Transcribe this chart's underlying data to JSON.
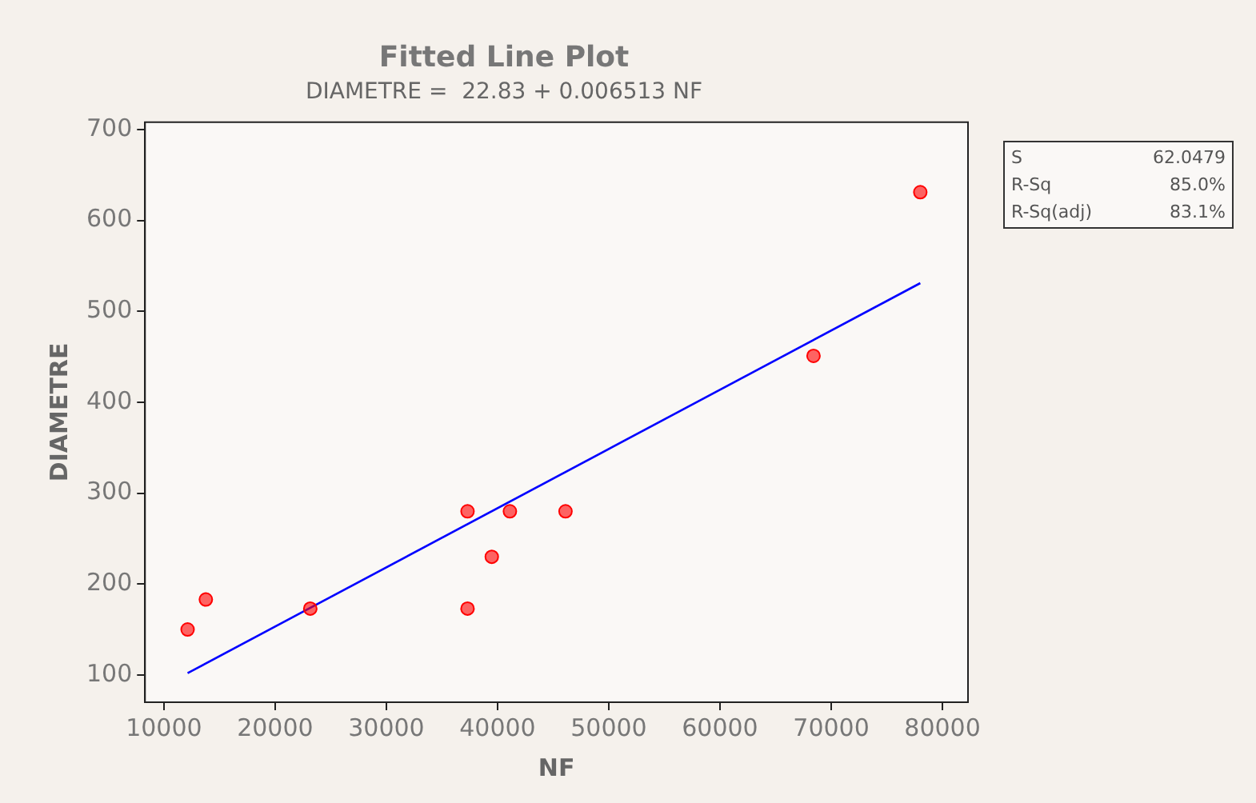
{
  "chart_data": {
    "type": "scatter",
    "title": "Fitted Line Plot",
    "subtitle": "DIAMETRE =  22.83 + 0.006513 NF",
    "xlabel": "NF",
    "ylabel": "DIAMETRE",
    "series": [
      {
        "color": "#ff0000",
        "x": [
          12130,
          13770,
          23160,
          37300,
          37300,
          39480,
          41110,
          46110,
          68410,
          78010
        ],
        "values": [
          150,
          183,
          173,
          280,
          173,
          230,
          280,
          280,
          451,
          631
        ]
      },
      {
        "type": "line",
        "color": "#0000ff",
        "marker": "none",
        "x": [
          12130,
          78010
        ],
        "values": [
          102,
          531
        ]
      }
    ],
    "xlim": [
      8300,
      82300
    ],
    "xticks": [
      10000,
      20000,
      30000,
      40000,
      50000,
      60000,
      70000,
      80000
    ],
    "ylim": [
      70,
      708
    ],
    "yticks": [
      100,
      200,
      300,
      400,
      500,
      600,
      700
    ],
    "grid": false,
    "legend": false,
    "marker": "circle",
    "annotations": [
      "S",
      "62.0479",
      "R-Sq",
      "85.0%",
      "R-Sq(adj)",
      "83.1%"
    ]
  }
}
